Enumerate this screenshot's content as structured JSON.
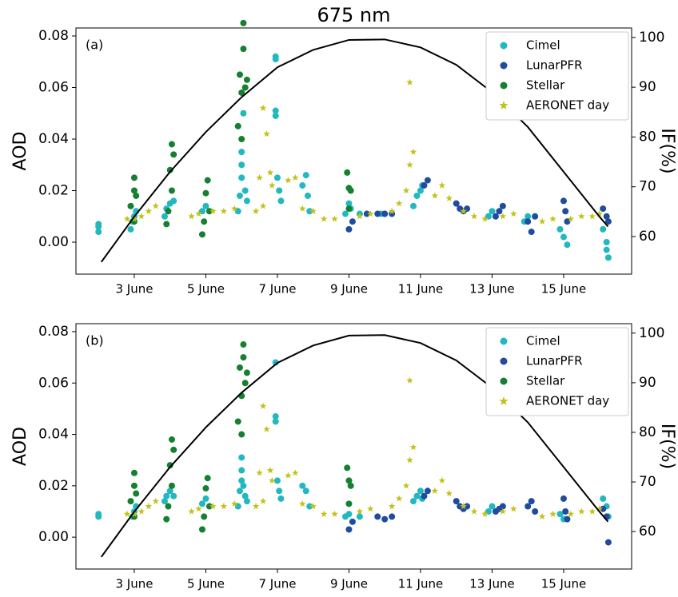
{
  "chart_data": [
    {
      "type": "scatter",
      "title": "675 nm",
      "label": "(a)",
      "ylabel": "AOD",
      "y2label": "IF(%)",
      "xlim": [
        1.37,
        16.9
      ],
      "xticks": [
        {
          "value": 3,
          "label": "3 June"
        },
        {
          "value": 5,
          "label": "5 June"
        },
        {
          "value": 7,
          "label": "7 June"
        },
        {
          "value": 9,
          "label": "9 June"
        },
        {
          "value": 11,
          "label": "11 June"
        },
        {
          "value": 13,
          "label": "13 June"
        },
        {
          "value": 15,
          "label": "15 June"
        }
      ],
      "ylim": [
        -0.0124,
        0.0831
      ],
      "yticks": [
        {
          "value": 0,
          "label": "0.00"
        },
        0.02,
        0.04,
        0.06,
        0.08
      ],
      "y2lim": [
        52.45,
        101.9
      ],
      "y2ticks": [
        60,
        70,
        80,
        90,
        100
      ],
      "legend": "upper right",
      "series": [
        {
          "name": "Cimel",
          "color": "#22b8c0",
          "marker": "circle",
          "x": [
            2.0,
            2.0,
            2.0,
            2.9,
            2.95,
            3.0,
            3.05,
            3.85,
            3.9,
            4.0,
            4.1,
            4.9,
            5.0,
            5.9,
            5.95,
            6.0,
            6.0,
            6.0,
            6.05,
            6.1,
            6.15,
            6.95,
            6.95,
            6.95,
            6.95,
            7.0,
            7.05,
            7.1,
            7.7,
            7.8,
            7.85,
            7.9,
            8.9,
            9.0,
            9.05,
            9.3,
            9.9,
            10.0,
            10.8,
            10.9,
            11.0,
            11.05,
            12.9,
            13.0,
            13.9,
            14.0,
            14.9,
            15.0,
            15.1,
            16.1,
            16.2,
            16.2,
            16.25
          ],
          "values": [
            0.004,
            0.006,
            0.007,
            0.005,
            0.008,
            0.01,
            0.012,
            0.01,
            0.013,
            0.015,
            0.016,
            0.012,
            0.014,
            0.012,
            0.018,
            0.025,
            0.03,
            0.035,
            0.05,
            0.02,
            0.016,
            0.072,
            0.071,
            0.051,
            0.049,
            0.025,
            0.02,
            0.016,
            0.022,
            0.026,
            0.018,
            0.012,
            0.011,
            0.015,
            0.013,
            0.011,
            0.011,
            0.011,
            0.014,
            0.018,
            0.02,
            0.022,
            0.01,
            0.012,
            0.008,
            0.01,
            0.005,
            0.002,
            -0.001,
            0.005,
            0.0,
            -0.003,
            -0.006
          ]
        },
        {
          "name": "LunarPFR",
          "color": "#1f4c9c",
          "marker": "circle",
          "x": [
            9.0,
            9.1,
            9.5,
            9.8,
            10.0,
            10.2,
            11.1,
            11.2,
            12.0,
            12.1,
            12.2,
            12.3,
            13.1,
            13.2,
            13.3,
            14.0,
            14.1,
            14.2,
            15.0,
            15.05,
            15.1,
            16.1,
            16.2,
            16.25
          ],
          "values": [
            0.005,
            0.008,
            0.011,
            0.011,
            0.011,
            0.011,
            0.022,
            0.024,
            0.015,
            0.013,
            0.012,
            0.013,
            0.01,
            0.012,
            0.014,
            0.008,
            0.004,
            0.01,
            0.016,
            0.012,
            0.008,
            0.013,
            0.01,
            0.008
          ]
        },
        {
          "name": "Stellar",
          "color": "#158032",
          "marker": "circle",
          "x": [
            2.9,
            3.0,
            3.0,
            3.05,
            3.0,
            3.9,
            3.95,
            4.0,
            4.05,
            4.1,
            4.05,
            4.9,
            4.95,
            5.0,
            5.05,
            5.1,
            5.9,
            5.95,
            6.0,
            6.05,
            6.05,
            6.1,
            6.15,
            6.0,
            8.95,
            9.0,
            9.05,
            9.0
          ],
          "values": [
            0.014,
            0.025,
            0.02,
            0.018,
            0.008,
            0.007,
            0.012,
            0.028,
            0.038,
            0.034,
            0.02,
            0.003,
            0.008,
            0.019,
            0.024,
            0.012,
            0.045,
            0.065,
            0.058,
            0.085,
            0.075,
            0.06,
            0.063,
            0.04,
            0.027,
            0.021,
            0.02,
            0.013
          ]
        },
        {
          "name": "AERONET day",
          "color": "#c2c21a",
          "marker": "star",
          "x": [
            2.8,
            3.0,
            3.2,
            3.4,
            3.6,
            4.6,
            4.8,
            5.2,
            5.5,
            5.8,
            6.4,
            6.6,
            6.5,
            6.7,
            6.6,
            6.85,
            6.8,
            7.3,
            7.5,
            7.7,
            8.0,
            8.3,
            8.6,
            9.3,
            9.6,
            10.2,
            10.4,
            10.6,
            10.7,
            10.8,
            10.7,
            11.4,
            11.6,
            11.8,
            12.2,
            12.5,
            12.8,
            13.3,
            13.6,
            14.4,
            14.7,
            15.2,
            15.5,
            15.8,
            16.0
          ],
          "values": [
            0.009,
            0.009,
            0.01,
            0.012,
            0.014,
            0.01,
            0.011,
            0.012,
            0.012,
            0.013,
            0.012,
            0.014,
            0.025,
            0.042,
            0.052,
            0.022,
            0.027,
            0.024,
            0.025,
            0.013,
            0.012,
            0.009,
            0.009,
            0.01,
            0.011,
            0.012,
            0.015,
            0.02,
            0.03,
            0.035,
            0.062,
            0.018,
            0.022,
            0.017,
            0.012,
            0.01,
            0.009,
            0.01,
            0.011,
            0.008,
            0.009,
            0.009,
            0.01,
            0.01,
            0.011
          ]
        },
        {
          "axis": "y2",
          "color": "#000000",
          "marker": "line",
          "x": [
            2.08,
            3,
            4,
            5,
            6,
            7,
            8,
            9,
            10,
            11,
            12,
            13,
            14,
            15,
            16,
            16.24
          ],
          "values": [
            54.9,
            64,
            73,
            81,
            88,
            94,
            97.5,
            99.5,
            99.6,
            98,
            94.5,
            89,
            82,
            73,
            64,
            62
          ]
        }
      ]
    },
    {
      "type": "scatter",
      "label": "(b)",
      "ylabel": "AOD",
      "y2label": "IF(%)",
      "xlim": [
        1.37,
        16.9
      ],
      "xticks": [
        {
          "value": 3,
          "label": "3 June"
        },
        {
          "value": 5,
          "label": "5 June"
        },
        {
          "value": 7,
          "label": "7 June"
        },
        {
          "value": 9,
          "label": "9 June"
        },
        {
          "value": 11,
          "label": "11 June"
        },
        {
          "value": 13,
          "label": "13 June"
        },
        {
          "value": 15,
          "label": "15 June"
        }
      ],
      "ylim": [
        -0.0124,
        0.0831
      ],
      "yticks": [
        {
          "value": 0,
          "label": "0.00"
        },
        0.02,
        0.04,
        0.06,
        0.08
      ],
      "y2lim": [
        52.45,
        101.9
      ],
      "y2ticks": [
        60,
        70,
        80,
        90,
        100
      ],
      "legend": "upper right",
      "series": [
        {
          "name": "Cimel",
          "color": "#22b8c0",
          "marker": "circle",
          "x": [
            2.0,
            2.0,
            2.95,
            3.0,
            3.05,
            3.85,
            3.9,
            4.0,
            4.1,
            4.9,
            5.0,
            5.9,
            5.95,
            6.0,
            6.0,
            6.0,
            6.05,
            6.1,
            6.15,
            6.95,
            6.95,
            6.95,
            7.0,
            7.05,
            7.1,
            7.7,
            7.8,
            7.9,
            8.9,
            9.0,
            9.3,
            10.8,
            10.9,
            11.0,
            11.05,
            12.9,
            13.0,
            14.9,
            15.0,
            16.1,
            16.2,
            16.25
          ],
          "values": [
            0.008,
            0.009,
            0.008,
            0.01,
            0.012,
            0.014,
            0.016,
            0.018,
            0.016,
            0.013,
            0.015,
            0.012,
            0.018,
            0.022,
            0.026,
            0.031,
            0.02,
            0.016,
            0.014,
            0.068,
            0.047,
            0.045,
            0.022,
            0.018,
            0.015,
            0.02,
            0.018,
            0.012,
            0.008,
            0.009,
            0.008,
            0.014,
            0.016,
            0.018,
            0.015,
            0.01,
            0.012,
            0.009,
            0.007,
            0.015,
            0.012,
            0.008
          ]
        },
        {
          "name": "LunarPFR",
          "color": "#1f4c9c",
          "marker": "circle",
          "x": [
            9.0,
            9.1,
            9.8,
            10.0,
            10.2,
            11.1,
            11.2,
            12.0,
            12.1,
            12.2,
            12.3,
            13.1,
            13.2,
            13.3,
            14.0,
            14.1,
            14.2,
            15.0,
            15.05,
            15.1,
            16.1,
            16.2,
            16.25
          ],
          "values": [
            0.003,
            0.006,
            0.008,
            0.007,
            0.008,
            0.016,
            0.018,
            0.014,
            0.012,
            0.011,
            0.012,
            0.01,
            0.011,
            0.012,
            0.012,
            0.014,
            0.01,
            0.015,
            0.01,
            0.007,
            0.011,
            0.008,
            -0.002
          ]
        },
        {
          "name": "Stellar",
          "color": "#158032",
          "marker": "circle",
          "x": [
            2.9,
            3.0,
            3.0,
            3.05,
            3.0,
            3.9,
            3.95,
            4.0,
            4.05,
            4.1,
            4.05,
            4.9,
            4.95,
            5.0,
            5.05,
            5.1,
            5.9,
            5.95,
            6.0,
            6.05,
            6.05,
            6.1,
            6.15,
            6.0,
            8.95,
            9.0,
            9.05,
            9.0
          ],
          "values": [
            0.014,
            0.025,
            0.02,
            0.017,
            0.008,
            0.007,
            0.012,
            0.028,
            0.038,
            0.034,
            0.02,
            0.003,
            0.008,
            0.019,
            0.023,
            0.012,
            0.045,
            0.066,
            0.055,
            0.075,
            0.07,
            0.06,
            0.064,
            0.04,
            0.027,
            0.022,
            0.02,
            0.013
          ]
        },
        {
          "name": "AERONET day",
          "color": "#c2c21a",
          "marker": "star",
          "x": [
            2.8,
            3.0,
            3.2,
            3.4,
            3.6,
            4.6,
            4.8,
            5.2,
            5.5,
            5.8,
            6.4,
            6.6,
            6.5,
            6.7,
            6.6,
            6.85,
            6.8,
            7.3,
            7.5,
            7.7,
            8.0,
            8.3,
            8.6,
            9.3,
            9.6,
            10.2,
            10.4,
            10.6,
            10.7,
            10.8,
            10.7,
            11.4,
            11.6,
            11.8,
            12.2,
            12.5,
            12.8,
            13.3,
            13.6,
            14.4,
            14.7,
            15.2,
            15.5,
            15.8,
            16.0
          ],
          "values": [
            0.009,
            0.009,
            0.01,
            0.012,
            0.014,
            0.01,
            0.011,
            0.012,
            0.012,
            0.013,
            0.012,
            0.014,
            0.025,
            0.042,
            0.051,
            0.022,
            0.026,
            0.024,
            0.025,
            0.013,
            0.012,
            0.009,
            0.009,
            0.01,
            0.011,
            0.012,
            0.015,
            0.02,
            0.03,
            0.035,
            0.061,
            0.018,
            0.022,
            0.017,
            0.012,
            0.01,
            0.009,
            0.01,
            0.011,
            0.008,
            0.009,
            0.009,
            0.01,
            0.01,
            0.011
          ]
        },
        {
          "axis": "y2",
          "color": "#000000",
          "marker": "line",
          "x": [
            2.08,
            3,
            4,
            5,
            6,
            7,
            8,
            9,
            10,
            11,
            12,
            13,
            14,
            15,
            16,
            16.24
          ],
          "values": [
            54.9,
            64,
            73,
            81,
            88,
            94,
            97.5,
            99.5,
            99.6,
            98,
            94.5,
            89,
            82,
            73,
            64,
            62
          ]
        }
      ]
    }
  ]
}
